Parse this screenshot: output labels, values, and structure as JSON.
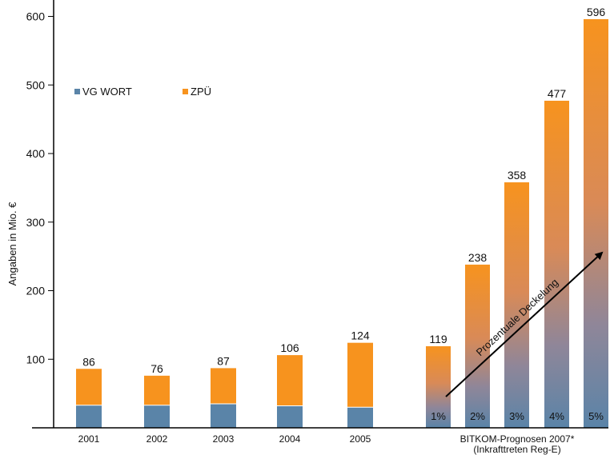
{
  "chart_data": {
    "type": "bar",
    "ylabel": "Angaben in Mio. €",
    "ylim": [
      0,
      620
    ],
    "yticks": [
      100,
      200,
      300,
      400,
      500,
      600
    ],
    "legend_position": "top-left",
    "series": [
      {
        "name": "VG WORT",
        "color": "#5a84a8"
      },
      {
        "name": "ZPÜ",
        "color": "#f7931e"
      }
    ],
    "historical": {
      "categories": [
        "2001",
        "2002",
        "2003",
        "2004",
        "2005"
      ],
      "totals": [
        86,
        76,
        87,
        106,
        124
      ],
      "vg_wort": [
        33,
        33,
        35,
        32,
        30
      ]
    },
    "forecast": {
      "label_line1": "BITKOM-Prognosen 2007*",
      "label_line2": "(Inkrafttreten Reg-E)",
      "totals": [
        119,
        238,
        358,
        477,
        596
      ],
      "percent_labels": [
        "1%",
        "2%",
        "3%",
        "4%",
        "5%"
      ],
      "arrow_label": "Prozentuale Deckelung"
    }
  }
}
